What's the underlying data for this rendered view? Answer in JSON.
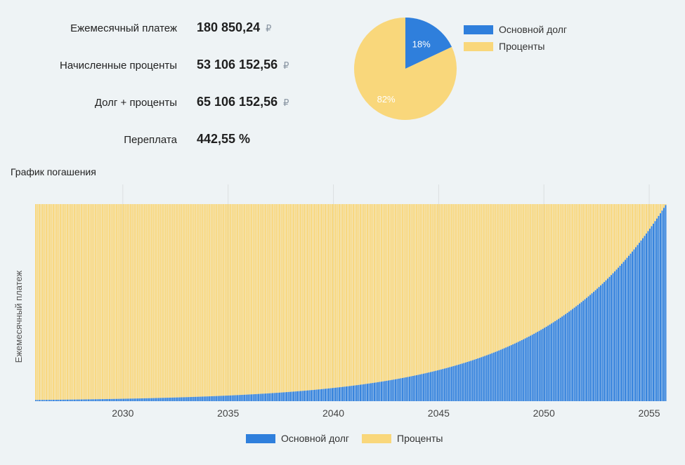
{
  "summary": [
    {
      "label": "Ежемесячный платеж",
      "value": "180 850,24",
      "currency": "₽"
    },
    {
      "label": "Начисленные проценты",
      "value": "53 106 152,56",
      "currency": "₽"
    },
    {
      "label": "Долг + проценты",
      "value": "65 106 152,56",
      "currency": "₽"
    },
    {
      "label": "Переплата",
      "value": "442,55 %",
      "currency": ""
    }
  ],
  "colors": {
    "principal": "#2f7fdc",
    "interest": "#f9d77b",
    "grid": "#dcdfe1",
    "axis_text": "#444444"
  },
  "pie": {
    "legend": [
      {
        "label": "Основной долг",
        "color": "#2f7fdc"
      },
      {
        "label": "Проценты",
        "color": "#f9d77b"
      }
    ]
  },
  "chart_section_title": "График погашения",
  "chart_data": [
    {
      "type": "pie",
      "categories": [
        "Основной долг",
        "Проценты"
      ],
      "values": [
        18,
        82
      ],
      "labels": [
        "18%",
        "82%"
      ]
    },
    {
      "type": "bar",
      "stacked": true,
      "title": "",
      "xlabel": "",
      "ylabel": "Ежемесячный платеж",
      "x_start": "2025-11",
      "periods": 360,
      "monthly_payment": 180850.24,
      "principal_share_first": 0.006,
      "principal_share_last": 0.995,
      "x_tick_labels": [
        "2030",
        "2035",
        "2040",
        "2045",
        "2050",
        "2055"
      ],
      "series": [
        {
          "name": "Основной долг",
          "color": "#2f7fdc"
        },
        {
          "name": "Проценты",
          "color": "#f9d77b"
        }
      ],
      "legend_position": "bottom",
      "grid": "vertical"
    }
  ]
}
